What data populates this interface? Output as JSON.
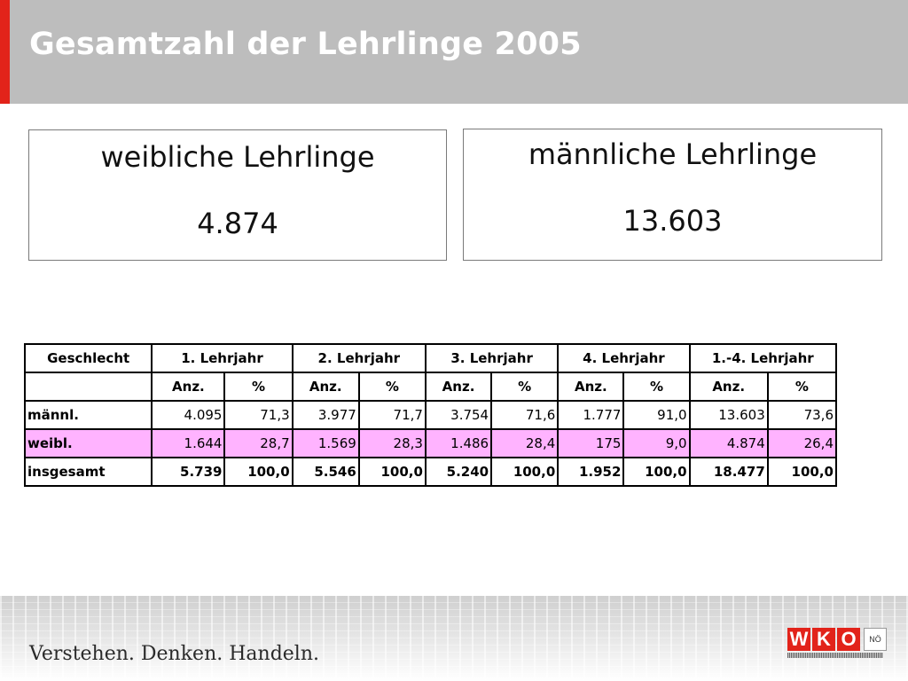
{
  "slide": {
    "title": "Gesamtzahl der Lehrlinge 2005",
    "slogan": "Verstehen. Denken. Handeln."
  },
  "boxes": {
    "female": {
      "label": "weibliche Lehrlinge",
      "value": "4.874"
    },
    "male": {
      "label": "männliche Lehrlinge",
      "value": "13.603"
    }
  },
  "table": {
    "header_groups": [
      "Geschlecht",
      "1. Lehrjahr",
      "2. Lehrjahr",
      "3. Lehrjahr",
      "4. Lehrjahr",
      "1.-4. Lehrjahr"
    ],
    "sub_headers": [
      "",
      "Anz.",
      "%",
      "Anz.",
      "%",
      "Anz.",
      "%",
      "Anz.",
      "%",
      "Anz.",
      "%"
    ],
    "rows": [
      {
        "label": "männl.",
        "cells": [
          "4.095",
          "71,3",
          "3.977",
          "71,7",
          "3.754",
          "71,6",
          "1.777",
          "91,0",
          "13.603",
          "73,6"
        ]
      },
      {
        "label": "weibl.",
        "cells": [
          "1.644",
          "28,7",
          "1.569",
          "28,3",
          "1.486",
          "28,4",
          "175",
          "9,0",
          "4.874",
          "26,4"
        ]
      },
      {
        "label": "insgesamt",
        "cells": [
          "5.739",
          "100,0",
          "5.546",
          "100,0",
          "5.240",
          "100,0",
          "1.952",
          "100,0",
          "18.477",
          "100,0"
        ]
      }
    ]
  },
  "logo": {
    "letters": [
      "W",
      "K",
      "O"
    ],
    "region": "NÖ",
    "icon": "wko-logo-icon"
  },
  "colors": {
    "accent_red": "#e2231a",
    "header_gray": "#bdbdbd",
    "female_row": "#ffb3ff"
  }
}
